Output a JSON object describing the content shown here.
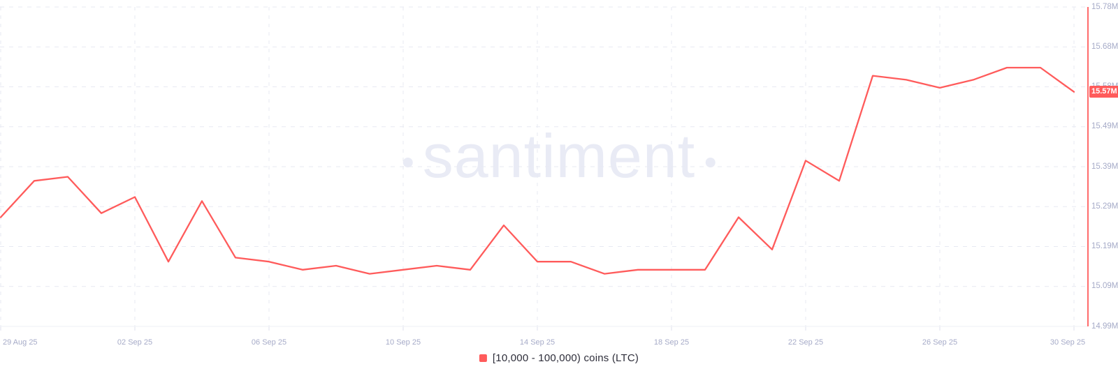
{
  "watermark": {
    "text": "santiment"
  },
  "colors": {
    "line": "#ff5b5b",
    "badge_bg": "#ff5b5b",
    "badge_text": "#ffffff",
    "grid": "#e7e9f2",
    "axis_line": "#edeff6",
    "axis_text": "#a6abc8",
    "legend_text": "#2e2e3a",
    "watermark": "#e9ebf5"
  },
  "legend": {
    "label": "[10,000 - 100,000) coins (LTC)"
  },
  "chart_data": {
    "type": "line",
    "title": "",
    "xlabel": "",
    "ylabel": "",
    "grid": "dashed",
    "legend_position": "bottom-center",
    "y_axis_side": "right",
    "now_line": true,
    "ylim": [
      14.99,
      15.78
    ],
    "yticks": [
      "15.78M",
      "15.68M",
      "15.58M",
      "15.49M",
      "15.39M",
      "15.29M",
      "15.19M",
      "15.09M",
      "14.99M"
    ],
    "xticks": [
      {
        "label": "29 Aug 25",
        "index": 0
      },
      {
        "label": "02 Sep 25",
        "index": 4
      },
      {
        "label": "06 Sep 25",
        "index": 8
      },
      {
        "label": "10 Sep 25",
        "index": 12
      },
      {
        "label": "14 Sep 25",
        "index": 16
      },
      {
        "label": "18 Sep 25",
        "index": 20
      },
      {
        "label": "22 Sep 25",
        "index": 24
      },
      {
        "label": "26 Sep 25",
        "index": 28
      },
      {
        "label": "30 Sep 25",
        "index": 32
      }
    ],
    "categories": [
      "29 Aug 25",
      "30 Aug 25",
      "31 Aug 25",
      "01 Sep 25",
      "02 Sep 25",
      "03 Sep 25",
      "04 Sep 25",
      "05 Sep 25",
      "06 Sep 25",
      "07 Sep 25",
      "08 Sep 25",
      "09 Sep 25",
      "10 Sep 25",
      "11 Sep 25",
      "12 Sep 25",
      "13 Sep 25",
      "14 Sep 25",
      "15 Sep 25",
      "16 Sep 25",
      "17 Sep 25",
      "18 Sep 25",
      "19 Sep 25",
      "20 Sep 25",
      "21 Sep 25",
      "22 Sep 25",
      "23 Sep 25",
      "24 Sep 25",
      "25 Sep 25",
      "26 Sep 25",
      "27 Sep 25",
      "28 Sep 25",
      "29 Sep 25",
      "30 Sep 25"
    ],
    "series": [
      {
        "name": "[10,000 - 100,000) coins (LTC)",
        "unit": "M",
        "values": [
          15.26,
          15.35,
          15.36,
          15.27,
          15.31,
          15.15,
          15.3,
          15.16,
          15.15,
          15.13,
          15.14,
          15.12,
          15.13,
          15.14,
          15.13,
          15.24,
          15.15,
          15.15,
          15.12,
          15.13,
          15.13,
          15.13,
          15.26,
          15.18,
          15.4,
          15.35,
          15.61,
          15.6,
          15.58,
          15.6,
          15.63,
          15.63,
          15.57
        ]
      }
    ],
    "current_value": 15.57,
    "current_value_label": "15.57M"
  }
}
